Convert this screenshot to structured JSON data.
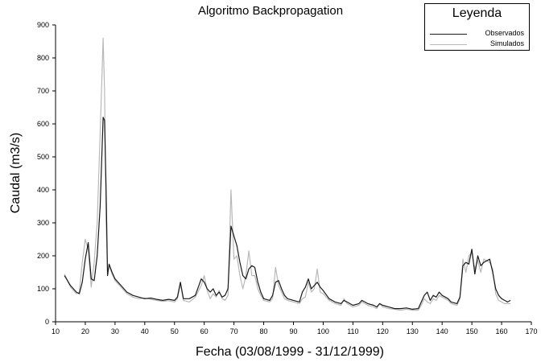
{
  "chart_data": {
    "type": "line",
    "title": "Algoritmo Backpropagation",
    "xlabel": "Fecha (03/08/1999 - 31/12/1999)",
    "ylabel": "Caudal (m3/s)",
    "xlim": [
      10,
      170
    ],
    "ylim": [
      0,
      900
    ],
    "xticks": [
      10,
      20,
      30,
      40,
      50,
      60,
      70,
      80,
      90,
      100,
      110,
      120,
      130,
      140,
      150,
      160,
      170
    ],
    "yticks": [
      0,
      100,
      200,
      300,
      400,
      500,
      600,
      700,
      800,
      900
    ],
    "grid": false,
    "legend": {
      "title": "Leyenda",
      "position": "top-right"
    },
    "series": [
      {
        "name": "Observados",
        "color": "#1a1a1a",
        "points": [
          [
            13,
            140
          ],
          [
            15,
            110
          ],
          [
            17,
            90
          ],
          [
            18,
            85
          ],
          [
            19,
            120
          ],
          [
            20,
            190
          ],
          [
            21,
            240
          ],
          [
            22,
            130
          ],
          [
            23,
            125
          ],
          [
            24,
            200
          ],
          [
            25,
            350
          ],
          [
            26,
            620
          ],
          [
            26.5,
            610
          ],
          [
            27,
            400
          ],
          [
            27.5,
            140
          ],
          [
            28,
            175
          ],
          [
            29,
            150
          ],
          [
            30,
            130
          ],
          [
            32,
            110
          ],
          [
            34,
            90
          ],
          [
            36,
            80
          ],
          [
            38,
            75
          ],
          [
            40,
            70
          ],
          [
            42,
            72
          ],
          [
            44,
            68
          ],
          [
            46,
            65
          ],
          [
            48,
            68
          ],
          [
            50,
            65
          ],
          [
            51,
            75
          ],
          [
            52,
            120
          ],
          [
            53,
            70
          ],
          [
            55,
            70
          ],
          [
            57,
            80
          ],
          [
            59,
            130
          ],
          [
            60,
            120
          ],
          [
            61,
            100
          ],
          [
            62,
            90
          ],
          [
            63,
            100
          ],
          [
            64,
            80
          ],
          [
            65,
            90
          ],
          [
            66,
            75
          ],
          [
            67,
            80
          ],
          [
            68,
            100
          ],
          [
            69,
            290
          ],
          [
            70,
            260
          ],
          [
            71,
            230
          ],
          [
            72,
            180
          ],
          [
            73,
            140
          ],
          [
            74,
            130
          ],
          [
            75,
            160
          ],
          [
            76,
            170
          ],
          [
            77,
            165
          ],
          [
            78,
            120
          ],
          [
            79,
            90
          ],
          [
            80,
            70
          ],
          [
            82,
            65
          ],
          [
            83,
            80
          ],
          [
            84,
            120
          ],
          [
            85,
            125
          ],
          [
            86,
            100
          ],
          [
            87,
            80
          ],
          [
            88,
            70
          ],
          [
            90,
            65
          ],
          [
            92,
            60
          ],
          [
            93,
            90
          ],
          [
            94,
            105
          ],
          [
            95,
            130
          ],
          [
            96,
            100
          ],
          [
            97,
            110
          ],
          [
            98,
            120
          ],
          [
            99,
            105
          ],
          [
            100,
            95
          ],
          [
            102,
            70
          ],
          [
            104,
            60
          ],
          [
            106,
            55
          ],
          [
            107,
            65
          ],
          [
            108,
            60
          ],
          [
            110,
            50
          ],
          [
            112,
            55
          ],
          [
            113,
            65
          ],
          [
            115,
            55
          ],
          [
            117,
            50
          ],
          [
            118,
            45
          ],
          [
            119,
            55
          ],
          [
            120,
            50
          ],
          [
            122,
            45
          ],
          [
            124,
            40
          ],
          [
            126,
            40
          ],
          [
            128,
            42
          ],
          [
            130,
            38
          ],
          [
            132,
            40
          ],
          [
            133,
            60
          ],
          [
            134,
            80
          ],
          [
            135,
            90
          ],
          [
            136,
            65
          ],
          [
            137,
            80
          ],
          [
            138,
            75
          ],
          [
            139,
            90
          ],
          [
            140,
            80
          ],
          [
            142,
            70
          ],
          [
            143,
            60
          ],
          [
            145,
            55
          ],
          [
            146,
            75
          ],
          [
            147,
            170
          ],
          [
            148,
            180
          ],
          [
            149,
            175
          ],
          [
            150,
            220
          ],
          [
            151,
            145
          ],
          [
            152,
            200
          ],
          [
            153,
            170
          ],
          [
            154,
            180
          ],
          [
            156,
            190
          ],
          [
            157,
            150
          ],
          [
            158,
            100
          ],
          [
            159,
            80
          ],
          [
            160,
            70
          ],
          [
            161,
            65
          ],
          [
            162,
            60
          ],
          [
            163,
            65
          ]
        ]
      },
      {
        "name": "Simulados",
        "color": "#b8b8b8",
        "points": [
          [
            13,
            145
          ],
          [
            15,
            105
          ],
          [
            17,
            85
          ],
          [
            18,
            90
          ],
          [
            19,
            180
          ],
          [
            20,
            250
          ],
          [
            21,
            220
          ],
          [
            22,
            105
          ],
          [
            23,
            180
          ],
          [
            24,
            300
          ],
          [
            25,
            570
          ],
          [
            26,
            860
          ],
          [
            26.5,
            700
          ],
          [
            27,
            300
          ],
          [
            27.5,
            150
          ],
          [
            28,
            170
          ],
          [
            29,
            145
          ],
          [
            30,
            125
          ],
          [
            32,
            105
          ],
          [
            34,
            85
          ],
          [
            36,
            75
          ],
          [
            38,
            70
          ],
          [
            40,
            72
          ],
          [
            42,
            68
          ],
          [
            44,
            65
          ],
          [
            46,
            62
          ],
          [
            48,
            64
          ],
          [
            50,
            60
          ],
          [
            51,
            70
          ],
          [
            52,
            115
          ],
          [
            53,
            65
          ],
          [
            55,
            60
          ],
          [
            57,
            75
          ],
          [
            59,
            110
          ],
          [
            60,
            140
          ],
          [
            61,
            95
          ],
          [
            62,
            70
          ],
          [
            63,
            85
          ],
          [
            64,
            75
          ],
          [
            65,
            95
          ],
          [
            66,
            70
          ],
          [
            67,
            65
          ],
          [
            68,
            80
          ],
          [
            69,
            400
          ],
          [
            70,
            190
          ],
          [
            71,
            200
          ],
          [
            72,
            140
          ],
          [
            73,
            100
          ],
          [
            74,
            140
          ],
          [
            75,
            215
          ],
          [
            76,
            140
          ],
          [
            77,
            140
          ],
          [
            78,
            100
          ],
          [
            79,
            80
          ],
          [
            80,
            65
          ],
          [
            82,
            60
          ],
          [
            83,
            70
          ],
          [
            84,
            165
          ],
          [
            85,
            110
          ],
          [
            86,
            90
          ],
          [
            87,
            70
          ],
          [
            88,
            65
          ],
          [
            90,
            60
          ],
          [
            92,
            55
          ],
          [
            93,
            70
          ],
          [
            94,
            75
          ],
          [
            95,
            120
          ],
          [
            96,
            90
          ],
          [
            97,
            100
          ],
          [
            98,
            160
          ],
          [
            99,
            90
          ],
          [
            100,
            85
          ],
          [
            102,
            65
          ],
          [
            104,
            55
          ],
          [
            106,
            50
          ],
          [
            107,
            70
          ],
          [
            108,
            55
          ],
          [
            110,
            45
          ],
          [
            112,
            50
          ],
          [
            113,
            60
          ],
          [
            115,
            50
          ],
          [
            117,
            45
          ],
          [
            118,
            40
          ],
          [
            119,
            55
          ],
          [
            120,
            45
          ],
          [
            122,
            40
          ],
          [
            124,
            38
          ],
          [
            126,
            35
          ],
          [
            128,
            38
          ],
          [
            130,
            35
          ],
          [
            132,
            35
          ],
          [
            133,
            50
          ],
          [
            134,
            70
          ],
          [
            135,
            60
          ],
          [
            136,
            55
          ],
          [
            137,
            70
          ],
          [
            138,
            65
          ],
          [
            139,
            80
          ],
          [
            140,
            75
          ],
          [
            142,
            65
          ],
          [
            143,
            55
          ],
          [
            145,
            50
          ],
          [
            146,
            70
          ],
          [
            147,
            190
          ],
          [
            148,
            150
          ],
          [
            149,
            200
          ],
          [
            150,
            210
          ],
          [
            151,
            160
          ],
          [
            152,
            185
          ],
          [
            153,
            150
          ],
          [
            154,
            190
          ],
          [
            156,
            180
          ],
          [
            157,
            160
          ],
          [
            158,
            85
          ],
          [
            159,
            65
          ],
          [
            160,
            60
          ],
          [
            161,
            55
          ],
          [
            162,
            55
          ],
          [
            163,
            55
          ]
        ]
      }
    ]
  }
}
